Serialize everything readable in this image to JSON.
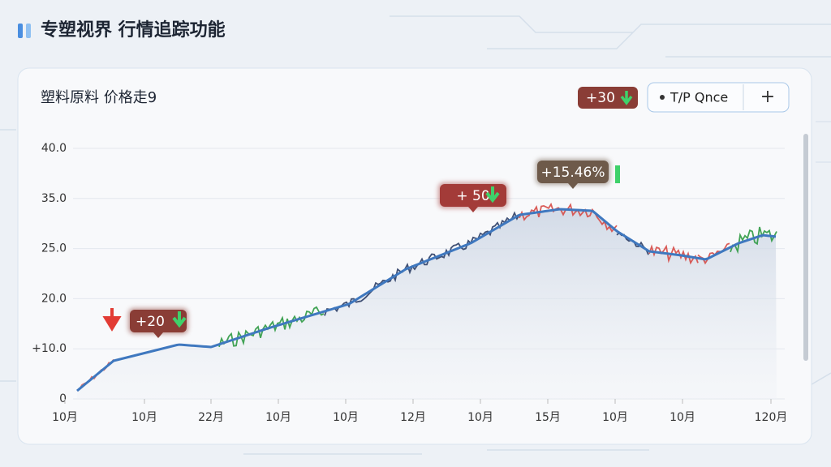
{
  "header": {
    "title": "专塑视界 行情追踪功能"
  },
  "panel": {
    "title": "塑料原料 价格走9",
    "badge": "+30",
    "button": "T/P Qnce",
    "add_button": "+",
    "y_labels": [
      "40.0",
      "35.0",
      "25.0",
      "20.0",
      "+10.0",
      "0"
    ],
    "x_labels": [
      "10月",
      "10月",
      "22月",
      "10月",
      "10月",
      "12月",
      "10月",
      "15月",
      "10月",
      "10月",
      "120月"
    ],
    "annotations": [
      "+20",
      "+ 50",
      "+15.46%"
    ]
  }
}
